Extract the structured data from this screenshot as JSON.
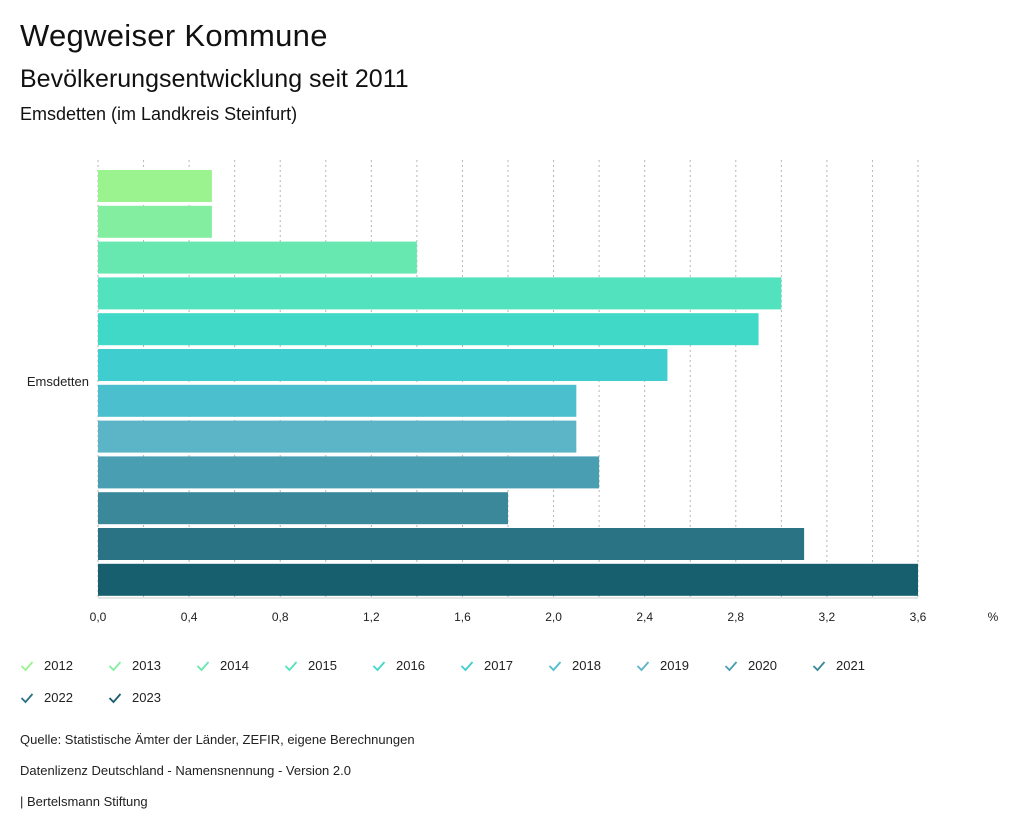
{
  "header": {
    "title": "Wegweiser Kommune",
    "subtitle": "Bevölkerungsentwicklung seit 2011",
    "region": "Emsdetten (im Landkreis Steinfurt)"
  },
  "chart_data": {
    "type": "bar",
    "orientation": "horizontal",
    "categories": [
      "Emsdetten"
    ],
    "series": [
      {
        "name": "2012",
        "values": [
          0.5
        ],
        "color": "#9af38f"
      },
      {
        "name": "2013",
        "values": [
          0.5
        ],
        "color": "#84eea0"
      },
      {
        "name": "2014",
        "values": [
          1.4
        ],
        "color": "#66e8b0"
      },
      {
        "name": "2015",
        "values": [
          3.0
        ],
        "color": "#52e2be"
      },
      {
        "name": "2016",
        "values": [
          2.9
        ],
        "color": "#40d9c8"
      },
      {
        "name": "2017",
        "values": [
          2.5
        ],
        "color": "#40cdcf"
      },
      {
        "name": "2018",
        "values": [
          2.1
        ],
        "color": "#4bbfcd"
      },
      {
        "name": "2019",
        "values": [
          2.1
        ],
        "color": "#5cb5c7"
      },
      {
        "name": "2020",
        "values": [
          2.2
        ],
        "color": "#4a9eb2"
      },
      {
        "name": "2021",
        "values": [
          1.8
        ],
        "color": "#3a889a"
      },
      {
        "name": "2022",
        "values": [
          3.1
        ],
        "color": "#297384"
      },
      {
        "name": "2023",
        "values": [
          3.6
        ],
        "color": "#175e6e"
      }
    ],
    "xlim": [
      0,
      3.6
    ],
    "xticks": [
      "0,0",
      "0,4",
      "0,8",
      "1,2",
      "1,6",
      "2,0",
      "2,4",
      "2,8",
      "3,2",
      "3,6"
    ],
    "xunit": "%",
    "grid": true
  },
  "footer": {
    "source": "Quelle: Statistische Ämter der Länder, ZEFIR, eigene Berechnungen",
    "license": "Datenlizenz Deutschland - Namensnennung - Version 2.0",
    "publisher": "| Bertelsmann Stiftung"
  }
}
